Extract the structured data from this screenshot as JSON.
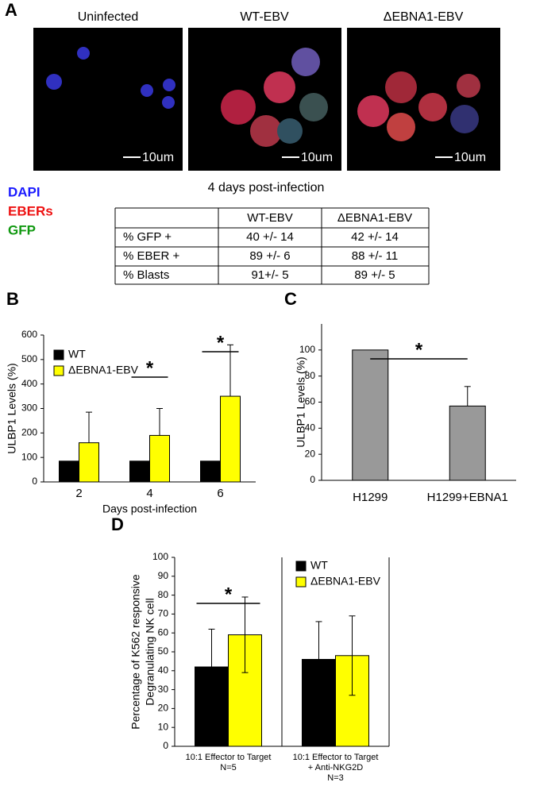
{
  "panel_labels": [
    "A",
    "B",
    "C",
    "D"
  ],
  "panel_a": {
    "images": [
      {
        "title": "Uninfected",
        "scale_bar": "10um"
      },
      {
        "title": "WT-EBV",
        "scale_bar": "10um"
      },
      {
        "title": "ΔEBNA1-EBV",
        "scale_bar": "10um"
      }
    ],
    "caption": "4 days post-infection",
    "stains": [
      {
        "label": "DAPI",
        "color": "#1a1aff"
      },
      {
        "label": "EBERs",
        "color": "#ee1111"
      },
      {
        "label": "GFP",
        "color": "#119911"
      }
    ],
    "table": {
      "header": [
        "WT-EBV",
        "ΔEBNA1-EBV"
      ],
      "rows": [
        [
          "% GFP +",
          "40 +/- 14",
          "42 +/- 14"
        ],
        [
          "% EBER +",
          "89 +/- 6",
          "88 +/- 11"
        ],
        [
          "% Blasts",
          "91+/- 5",
          "89 +/- 5"
        ]
      ]
    }
  },
  "chart_data": [
    {
      "type": "bar",
      "y_label": [
        "ULBP1 Levels (%)"
      ],
      "x_label": "Days post-infection",
      "categories": [
        [
          "2"
        ],
        [
          "4"
        ],
        [
          "6"
        ]
      ],
      "series": [
        {
          "name": "WT",
          "color": "#000000",
          "values": [
            85,
            85,
            85
          ]
        },
        {
          "name": "ΔEBNA1-EBV",
          "color": "#ffff00",
          "values": [
            160,
            190,
            350
          ],
          "errors": [
            125,
            110,
            210
          ]
        }
      ],
      "ylim": [
        0,
        600
      ],
      "yticks": [
        0,
        100,
        200,
        300,
        400,
        500,
        600
      ],
      "annotations": [
        "*",
        "*"
      ]
    },
    {
      "type": "bar",
      "y_label": [
        "ULBP1 Levels (%)"
      ],
      "categories": [
        [
          "H1299"
        ],
        [
          "H1299+EBNA1"
        ]
      ],
      "series": [
        {
          "color": "#999999",
          "values": [
            100,
            57
          ],
          "errors": [
            null,
            15
          ]
        }
      ],
      "ylim": [
        0,
        120
      ],
      "yticks": [
        0,
        20,
        40,
        60,
        80,
        100
      ],
      "annotations": [
        "*"
      ]
    },
    {
      "type": "bar",
      "y_label": [
        "Percentage of K562 responsive",
        "Degranulating NK cell"
      ],
      "categories": [
        [
          "10:1 Effector to Target",
          "N=5"
        ],
        [
          "10:1 Effector to Target",
          "+ Anti-NKG2D",
          "N=3"
        ]
      ],
      "series": [
        {
          "name": "WT",
          "color": "#000000",
          "values": [
            42,
            46
          ],
          "errors": [
            20,
            20
          ]
        },
        {
          "name": "ΔEBNA1-EBV",
          "color": "#ffff00",
          "values": [
            59,
            48
          ],
          "errors": [
            20,
            21
          ]
        }
      ],
      "ylim": [
        0,
        100
      ],
      "yticks": [
        0,
        10,
        20,
        30,
        40,
        50,
        60,
        70,
        80,
        90,
        100
      ],
      "annotations": [
        "*"
      ]
    }
  ]
}
